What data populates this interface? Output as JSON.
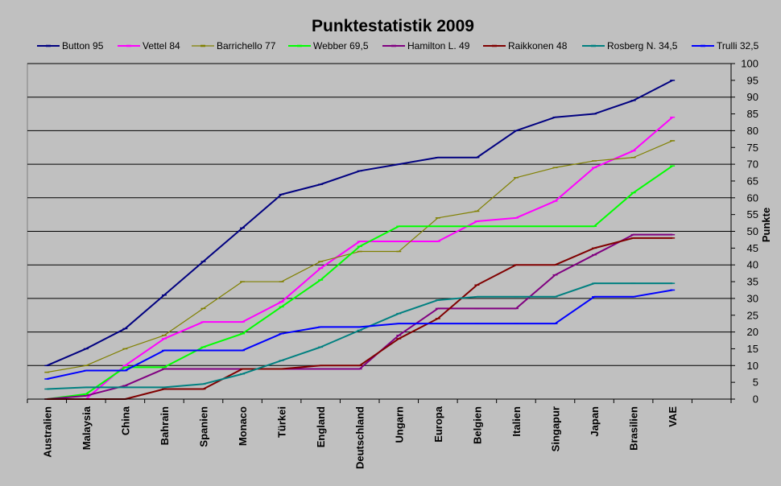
{
  "chart_data": {
    "type": "line",
    "title": "Punktestatistik 2009",
    "ylabel": "Punkte",
    "xlabel": "",
    "ylim": [
      0,
      100
    ],
    "ytick_step": 5,
    "grid": true,
    "legend_position": "top",
    "categories": [
      "Australien",
      "Malaysia",
      "China",
      "Bahrain",
      "Spanien",
      "Monaco",
      "Türkei",
      "England",
      "Deutschland",
      "Ungarn",
      "Europa",
      "Belgien",
      "Italien",
      "Singapur",
      "Japan",
      "Brasilien",
      "VAE"
    ],
    "series": [
      {
        "name": "Button 95",
        "color": "#000080",
        "values": [
          10,
          15,
          21,
          31,
          41,
          51,
          61,
          64,
          68,
          70,
          72,
          72,
          80,
          84,
          85,
          89,
          95
        ]
      },
      {
        "name": "Vettel 84",
        "color": "#ff00ff",
        "values": [
          0,
          0,
          10,
          18,
          23,
          23,
          29,
          39,
          47,
          47,
          47,
          53,
          54,
          59,
          69,
          74,
          84
        ]
      },
      {
        "name": "Barrichello 77",
        "color": "#808000",
        "values": [
          8,
          10,
          15,
          19,
          27,
          35,
          35,
          41,
          44,
          44,
          54,
          56,
          66,
          69,
          71,
          72,
          77
        ]
      },
      {
        "name": "Webber 69,5",
        "color": "#00ff00",
        "values": [
          0,
          1.5,
          9.5,
          9.5,
          15.5,
          19.5,
          27.5,
          35.5,
          45.5,
          51.5,
          51.5,
          51.5,
          51.5,
          51.5,
          51.5,
          61.5,
          69.5
        ]
      },
      {
        "name": "Hamilton L. 49",
        "color": "#800080",
        "values": [
          0,
          1,
          4,
          9,
          9,
          9,
          9,
          9,
          9,
          19,
          27,
          27,
          27,
          37,
          43,
          49,
          49
        ]
      },
      {
        "name": "Raikkonen 48",
        "color": "#800000",
        "values": [
          0,
          0,
          0,
          3,
          3,
          9,
          9,
          10,
          10,
          18,
          24,
          34,
          40,
          40,
          45,
          48,
          48
        ]
      },
      {
        "name": "Rosberg N. 34,5",
        "color": "#008080",
        "values": [
          3,
          3.5,
          3.5,
          3.5,
          4.5,
          7.5,
          11.5,
          15.5,
          20.5,
          25.5,
          29.5,
          30.5,
          30.5,
          30.5,
          34.5,
          34.5,
          34.5
        ]
      },
      {
        "name": "Trulli 32,5",
        "color": "#0000ff",
        "values": [
          6,
          8.5,
          8.5,
          14.5,
          14.5,
          14.5,
          19.5,
          21.5,
          21.5,
          22.5,
          22.5,
          22.5,
          22.5,
          22.5,
          30.5,
          30.5,
          32.5
        ]
      }
    ]
  }
}
